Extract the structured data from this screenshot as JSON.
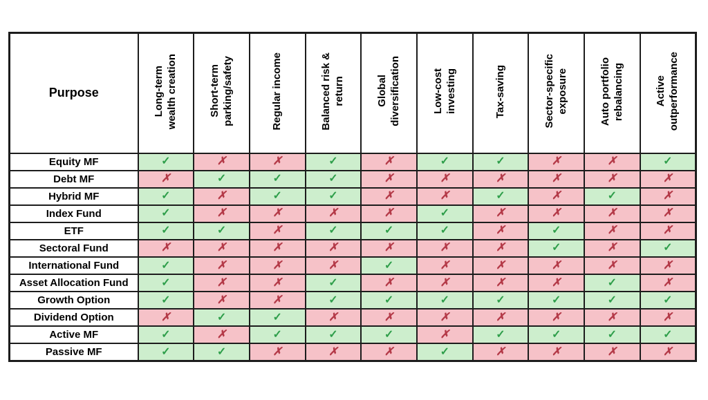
{
  "chart_data": {
    "type": "table",
    "corner_header": "Purpose",
    "marks": {
      "yes": "✓",
      "no": "✗"
    },
    "colors": {
      "yes_bg": "#cdeecd",
      "no_bg": "#f6c2c8",
      "yes_mark": "#2e9e4a",
      "no_mark": "#b43a48",
      "border": "#1c1c1c",
      "header_bg": "#ffffff",
      "text": "#000000"
    },
    "columns": [
      "Long-term\nwealth creation",
      "Short-term\nparking/safety",
      "Regular income",
      "Balanced risk &\nreturn",
      "Global\ndiversification",
      "Low-cost\ninvesting",
      "Tax-saving",
      "Sector-specific\nexposure",
      "Auto portfolio\nrebalancing",
      "Active\noutperformance"
    ],
    "rows": [
      {
        "label": "Equity MF",
        "values": [
          1,
          0,
          0,
          1,
          0,
          1,
          1,
          0,
          0,
          1
        ]
      },
      {
        "label": "Debt MF",
        "values": [
          0,
          1,
          1,
          1,
          0,
          0,
          0,
          0,
          0,
          0
        ]
      },
      {
        "label": "Hybrid MF",
        "values": [
          1,
          0,
          1,
          1,
          0,
          0,
          1,
          0,
          1,
          0
        ]
      },
      {
        "label": "Index Fund",
        "values": [
          1,
          0,
          0,
          0,
          0,
          1,
          0,
          0,
          0,
          0
        ]
      },
      {
        "label": "ETF",
        "values": [
          1,
          1,
          0,
          1,
          1,
          1,
          0,
          1,
          0,
          0
        ]
      },
      {
        "label": "Sectoral Fund",
        "values": [
          0,
          0,
          0,
          0,
          0,
          0,
          0,
          1,
          0,
          1
        ]
      },
      {
        "label": "International Fund",
        "values": [
          1,
          0,
          0,
          0,
          1,
          0,
          0,
          0,
          0,
          0
        ]
      },
      {
        "label": "Asset Allocation Fund",
        "values": [
          1,
          0,
          0,
          1,
          0,
          0,
          0,
          0,
          1,
          0
        ]
      },
      {
        "label": "Growth Option",
        "values": [
          1,
          0,
          0,
          1,
          1,
          1,
          1,
          1,
          1,
          1
        ]
      },
      {
        "label": "Dividend Option",
        "values": [
          0,
          1,
          1,
          0,
          0,
          0,
          0,
          0,
          0,
          0
        ]
      },
      {
        "label": "Active MF",
        "values": [
          1,
          0,
          1,
          1,
          1,
          0,
          1,
          1,
          1,
          1
        ]
      },
      {
        "label": "Passive MF",
        "values": [
          1,
          1,
          0,
          0,
          0,
          1,
          0,
          0,
          0,
          0
        ]
      }
    ]
  }
}
